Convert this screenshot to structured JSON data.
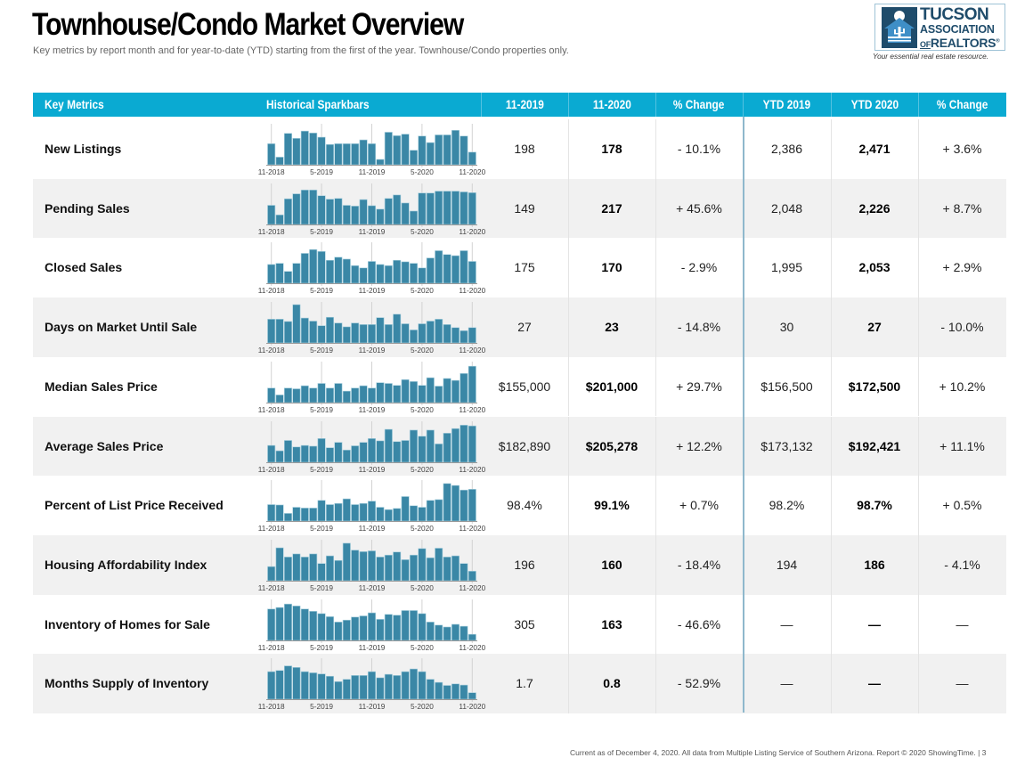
{
  "header": {
    "title": "Townhouse/Condo Market Overview",
    "subtitle": "Key metrics by report month and for year-to-date (YTD) starting from the first of the year. Townhouse/Condo properties only."
  },
  "logo": {
    "line1": "TUCSON",
    "line2": "ASSOCIATION",
    "line3_of": "OF",
    "line3_rest": "REALTORS",
    "registered": "®",
    "tagline": "Your essential real estate resource."
  },
  "colors": {
    "header_bg": "#0aaad2",
    "bar_fill": "#3a87a6",
    "bar_stroke": "#a9d0de",
    "alt_row": "#f1f1f1",
    "divider": "#8fb8cc"
  },
  "table": {
    "columns": [
      "Key Metrics",
      "Historical Sparkbars",
      "11-2019",
      "11-2020",
      "% Change",
      "YTD 2019",
      "YTD 2020",
      "% Change"
    ],
    "rows": [
      {
        "metric": "New Listings",
        "m2019": "198",
        "m2020": "178",
        "mchg": "- 10.1%",
        "y2019": "2,386",
        "y2020": "2,471",
        "ychg": "+ 3.6%"
      },
      {
        "metric": "Pending Sales",
        "m2019": "149",
        "m2020": "217",
        "mchg": "+ 45.6%",
        "y2019": "2,048",
        "y2020": "2,226",
        "ychg": "+ 8.7%"
      },
      {
        "metric": "Closed Sales",
        "m2019": "175",
        "m2020": "170",
        "mchg": "- 2.9%",
        "y2019": "1,995",
        "y2020": "2,053",
        "ychg": "+ 2.9%"
      },
      {
        "metric": "Days on Market Until Sale",
        "m2019": "27",
        "m2020": "23",
        "mchg": "- 14.8%",
        "y2019": "30",
        "y2020": "27",
        "ychg": "- 10.0%"
      },
      {
        "metric": "Median Sales Price",
        "m2019": "$155,000",
        "m2020": "$201,000",
        "mchg": "+ 29.7%",
        "y2019": "$156,500",
        "y2020": "$172,500",
        "ychg": "+ 10.2%"
      },
      {
        "metric": "Average Sales Price",
        "m2019": "$182,890",
        "m2020": "$205,278",
        "mchg": "+ 12.2%",
        "y2019": "$173,132",
        "y2020": "$192,421",
        "ychg": "+ 11.1%"
      },
      {
        "metric": "Percent of List Price Received",
        "m2019": "98.4%",
        "m2020": "99.1%",
        "mchg": "+ 0.7%",
        "y2019": "98.2%",
        "y2020": "98.7%",
        "ychg": "+ 0.5%"
      },
      {
        "metric": "Housing Affordability Index",
        "m2019": "196",
        "m2020": "160",
        "mchg": "- 18.4%",
        "y2019": "194",
        "y2020": "186",
        "ychg": "- 4.1%"
      },
      {
        "metric": "Inventory of Homes for Sale",
        "m2019": "305",
        "m2020": "163",
        "mchg": "- 46.6%",
        "y2019": "—",
        "y2020": "—",
        "ychg": "—"
      },
      {
        "metric": "Months Supply of Inventory",
        "m2019": "1.7",
        "m2020": "0.8",
        "mchg": "- 52.9%",
        "y2019": "—",
        "y2020": "—",
        "ychg": "—"
      }
    ]
  },
  "chart_data": {
    "type": "bar",
    "title": "Historical Sparkbars",
    "xlabel": "",
    "ylabel": "",
    "ylim": [
      0,
      100
    ],
    "grid": true,
    "tick_labels": [
      "11-2018",
      "5-2019",
      "11-2019",
      "5-2020",
      "11-2020"
    ],
    "tick_indices": [
      0,
      6,
      12,
      18,
      24
    ],
    "x": [
      "11-2018",
      "12-2018",
      "1-2019",
      "2-2019",
      "3-2019",
      "4-2019",
      "5-2019",
      "6-2019",
      "7-2019",
      "8-2019",
      "9-2019",
      "10-2019",
      "11-2019",
      "12-2019",
      "1-2020",
      "2-2020",
      "3-2020",
      "4-2020",
      "5-2020",
      "6-2020",
      "7-2020",
      "8-2020",
      "9-2020",
      "10-2020",
      "11-2020"
    ],
    "series": [
      {
        "name": "New Listings",
        "values": [
          55,
          20,
          82,
          69,
          88,
          83,
          72,
          53,
          55,
          55,
          55,
          65,
          55,
          14,
          85,
          76,
          80,
          38,
          75,
          58,
          78,
          78,
          90,
          75,
          33
        ]
      },
      {
        "name": "Pending Sales",
        "values": [
          50,
          25,
          67,
          80,
          90,
          90,
          75,
          66,
          68,
          50,
          48,
          65,
          49,
          40,
          68,
          77,
          56,
          35,
          82,
          82,
          87,
          87,
          87,
          85,
          83
        ]
      },
      {
        "name": "Closed Sales",
        "values": [
          49,
          52,
          31,
          52,
          78,
          88,
          83,
          60,
          68,
          63,
          46,
          40,
          57,
          49,
          46,
          60,
          56,
          52,
          40,
          66,
          85,
          75,
          72,
          85,
          57
        ]
      },
      {
        "name": "Days on Market Until Sale",
        "values": [
          62,
          62,
          56,
          100,
          65,
          57,
          45,
          67,
          52,
          42,
          52,
          48,
          48,
          66,
          48,
          75,
          50,
          34,
          50,
          57,
          62,
          48,
          40,
          32,
          40
        ]
      },
      {
        "name": "Median Sales Price",
        "values": [
          38,
          20,
          38,
          36,
          44,
          38,
          50,
          38,
          50,
          30,
          38,
          44,
          38,
          52,
          50,
          45,
          60,
          55,
          45,
          65,
          43,
          63,
          58,
          76,
          95
        ]
      },
      {
        "name": "Average Sales Price",
        "values": [
          44,
          30,
          57,
          40,
          44,
          42,
          62,
          38,
          52,
          32,
          43,
          52,
          62,
          56,
          86,
          54,
          57,
          84,
          68,
          84,
          48,
          76,
          88,
          97,
          95
        ]
      },
      {
        "name": "Percent of List Price Received",
        "values": [
          43,
          42,
          20,
          36,
          34,
          34,
          54,
          43,
          46,
          58,
          43,
          46,
          52,
          36,
          30,
          33,
          64,
          40,
          36,
          54,
          56,
          98,
          93,
          81,
          83
        ]
      },
      {
        "name": "Housing Affordability Index",
        "values": [
          37,
          86,
          62,
          70,
          62,
          70,
          45,
          65,
          53,
          98,
          80,
          76,
          78,
          62,
          67,
          75,
          55,
          67,
          84,
          60,
          85,
          62,
          65,
          45,
          25
        ]
      },
      {
        "name": "Inventory of Homes for Sale",
        "values": [
          82,
          86,
          95,
          90,
          82,
          76,
          70,
          62,
          48,
          53,
          61,
          64,
          72,
          55,
          68,
          66,
          78,
          78,
          70,
          48,
          40,
          35,
          42,
          37,
          16
        ]
      },
      {
        "name": "Months Supply of Inventory",
        "values": [
          72,
          75,
          87,
          83,
          72,
          69,
          66,
          60,
          46,
          52,
          62,
          62,
          72,
          56,
          65,
          62,
          72,
          79,
          72,
          52,
          44,
          36,
          40,
          37,
          17
        ]
      }
    ]
  },
  "footer": {
    "text": "Current as of December 4, 2020. All data from Multiple Listing Service of Southern Arizona. Report © 2020 ShowingTime.  |  3"
  }
}
